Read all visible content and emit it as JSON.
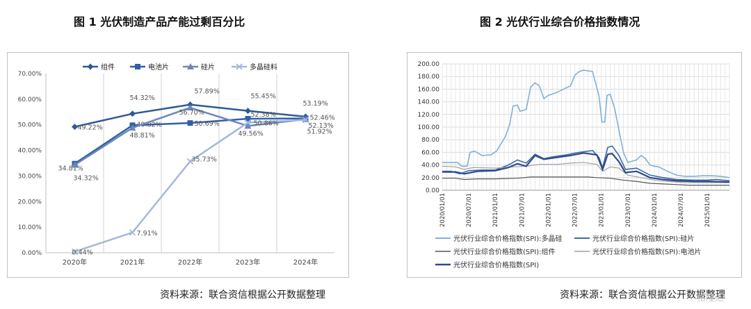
{
  "figure1": {
    "title": "图 1 光伏制造产品产能过剩百分比",
    "source": "资料来源：联合资信根据公开数据整理"
  },
  "figure2": {
    "title": "图 2  光伏行业综合价格指数情况",
    "source": "资料来源：联合资信根据公开数据整理"
  },
  "chart_data": [
    {
      "type": "line",
      "title": "图 1 光伏制造产品产能过剩百分比",
      "categories": [
        "2020年",
        "2021年",
        "2022年",
        "2023年",
        "2024年"
      ],
      "ylim": [
        0,
        70
      ],
      "yticks": [
        "0.00%",
        "10.00%",
        "20.00%",
        "30.00%",
        "40.00%",
        "50.00%",
        "60.00%",
        "70.00%"
      ],
      "grid": "vertical",
      "legend_position": "top",
      "series": [
        {
          "name": "组件",
          "values": [
            49.22,
            54.32,
            57.89,
            55.45,
            53.19
          ],
          "labels": [
            "49.22%",
            "54.32%",
            "57.89%",
            "55.45%",
            "53.19%"
          ],
          "color": "#2e5a93",
          "marker": "diamond"
        },
        {
          "name": "电池片",
          "values": [
            34.81,
            49.82,
            50.69,
            52.38,
            52.46
          ],
          "labels": [
            "34.81%",
            "49.82%",
            "50.69%",
            "52.38%",
            "52.46%"
          ],
          "color": "#2f5fa8",
          "marker": "square"
        },
        {
          "name": "硅片",
          "values": [
            34.32,
            48.81,
            56.7,
            49.56,
            52.13
          ],
          "labels": [
            "34.32%",
            "48.81%",
            "56.70%",
            "49.56%",
            "52.13%"
          ],
          "color": "#6d86bc",
          "marker": "triangle"
        },
        {
          "name": "多晶硅料",
          "values": [
            0.44,
            7.91,
            35.73,
            50.86,
            51.92
          ],
          "labels": [
            "0.44%",
            "7.91%",
            "35.73%",
            "50.86%",
            "51.92%"
          ],
          "color": "#a6b7d9",
          "marker": "x"
        }
      ]
    },
    {
      "type": "line",
      "title": "图 2  光伏行业综合价格指数情况",
      "x_ticks": [
        "2020/01/01",
        "2020/07/01",
        "2021/01/01",
        "2021/07/01",
        "2022/01/01",
        "2022/07/01",
        "2023/01/01",
        "2023/07/01",
        "2024/01/01",
        "2024/07/01",
        "2025/01/01"
      ],
      "xlim": [
        "2020/01/01",
        "2025/06/01"
      ],
      "ylim": [
        0,
        200
      ],
      "yticks": [
        "0.00",
        "20.00",
        "40.00",
        "60.00",
        "80.00",
        "100.00",
        "120.00",
        "140.00",
        "160.00",
        "180.00",
        "200.00"
      ],
      "grid": "both",
      "legend_position": "bottom",
      "series": [
        {
          "name": "光伏行业综合价格指数(SPI):多晶硅",
          "color": "#7fb0d8",
          "points": [
            [
              "2020/01/01",
              44
            ],
            [
              "2020/04/15",
              44
            ],
            [
              "2020/05/15",
              38
            ],
            [
              "2020/06/20",
              38
            ],
            [
              "2020/07/10",
              60
            ],
            [
              "2020/08/10",
              62
            ],
            [
              "2020/10/01",
              55
            ],
            [
              "2020/12/01",
              56
            ],
            [
              "2021/01/10",
              62
            ],
            [
              "2021/03/10",
              85
            ],
            [
              "2021/04/10",
              105
            ],
            [
              "2021/05/01",
              133
            ],
            [
              "2021/06/01",
              135
            ],
            [
              "2021/06/20",
              125
            ],
            [
              "2021/08/01",
              128
            ],
            [
              "2021/09/01",
              163
            ],
            [
              "2021/10/01",
              170
            ],
            [
              "2021/11/01",
              165
            ],
            [
              "2021/12/01",
              145
            ],
            [
              "2022/01/01",
              150
            ],
            [
              "2022/03/01",
              155
            ],
            [
              "2022/05/01",
              162
            ],
            [
              "2022/06/01",
              165
            ],
            [
              "2022/07/01",
              182
            ],
            [
              "2022/08/01",
              188
            ],
            [
              "2022/09/01",
              190
            ],
            [
              "2022/11/01",
              188
            ],
            [
              "2022/12/15",
              150
            ],
            [
              "2023/01/05",
              108
            ],
            [
              "2023/01/25",
              108
            ],
            [
              "2023/02/10",
              150
            ],
            [
              "2023/03/01",
              152
            ],
            [
              "2023/04/01",
              130
            ],
            [
              "2023/05/01",
              95
            ],
            [
              "2023/06/01",
              60
            ],
            [
              "2023/07/01",
              44
            ],
            [
              "2023/09/01",
              48
            ],
            [
              "2023/10/01",
              55
            ],
            [
              "2023/11/01",
              50
            ],
            [
              "2023/12/01",
              40
            ],
            [
              "2024/01/01",
              38
            ],
            [
              "2024/02/01",
              37
            ],
            [
              "2024/04/01",
              30
            ],
            [
              "2024/06/01",
              24
            ],
            [
              "2024/08/01",
              22
            ],
            [
              "2024/10/01",
              22
            ],
            [
              "2024/12/01",
              23
            ],
            [
              "2025/02/01",
              23
            ],
            [
              "2025/04/01",
              22
            ],
            [
              "2025/06/01",
              20
            ]
          ]
        },
        {
          "name": "光伏行业综合价格指数(SPI):硅片",
          "color": "#3a6aa5",
          "points": [
            [
              "2020/01/01",
              30
            ],
            [
              "2020/03/01",
              30
            ],
            [
              "2020/05/01",
              26
            ],
            [
              "2020/07/01",
              31
            ],
            [
              "2020/10/01",
              32
            ],
            [
              "2021/01/01",
              32
            ],
            [
              "2021/04/01",
              40
            ],
            [
              "2021/06/01",
              48
            ],
            [
              "2021/08/01",
              43
            ],
            [
              "2021/10/01",
              57
            ],
            [
              "2021/12/01",
              50
            ],
            [
              "2022/02/01",
              53
            ],
            [
              "2022/05/01",
              56
            ],
            [
              "2022/08/01",
              60
            ],
            [
              "2022/11/01",
              63
            ],
            [
              "2022/12/15",
              52
            ],
            [
              "2023/01/10",
              36
            ],
            [
              "2023/02/15",
              68
            ],
            [
              "2023/03/15",
              70
            ],
            [
              "2023/05/01",
              55
            ],
            [
              "2023/06/15",
              33
            ],
            [
              "2023/09/01",
              35
            ],
            [
              "2023/12/01",
              24
            ],
            [
              "2024/03/01",
              20
            ],
            [
              "2024/06/01",
              17
            ],
            [
              "2024/10/01",
              16
            ],
            [
              "2025/01/01",
              16
            ],
            [
              "2025/03/01",
              17
            ],
            [
              "2025/06/01",
              15
            ]
          ]
        },
        {
          "name": "光伏行业综合价格指数(SPI):组件",
          "color": "#555555",
          "points": [
            [
              "2020/01/01",
              19
            ],
            [
              "2020/04/01",
              19
            ],
            [
              "2020/06/01",
              17
            ],
            [
              "2020/09/01",
              18
            ],
            [
              "2021/01/01",
              18
            ],
            [
              "2021/06/01",
              19
            ],
            [
              "2021/09/01",
              21
            ],
            [
              "2021/12/01",
              21
            ],
            [
              "2022/06/01",
              21
            ],
            [
              "2022/10/01",
              21
            ],
            [
              "2022/12/01",
              20
            ],
            [
              "2023/03/01",
              19
            ],
            [
              "2023/06/01",
              16
            ],
            [
              "2023/09/01",
              14
            ],
            [
              "2023/12/01",
              11
            ],
            [
              "2024/03/01",
              10
            ],
            [
              "2024/06/01",
              9
            ],
            [
              "2024/09/01",
              8
            ],
            [
              "2025/01/01",
              8
            ],
            [
              "2025/06/01",
              8
            ]
          ]
        },
        {
          "name": "光伏行业综合价格指数(SPI):电池片",
          "color": "#a0a0a0",
          "points": [
            [
              "2020/01/01",
              38
            ],
            [
              "2020/04/01",
              37
            ],
            [
              "2020/06/01",
              33
            ],
            [
              "2020/08/01",
              36
            ],
            [
              "2021/01/01",
              35
            ],
            [
              "2021/05/01",
              37
            ],
            [
              "2021/08/01",
              38
            ],
            [
              "2021/11/01",
              41
            ],
            [
              "2022/03/01",
              41
            ],
            [
              "2022/06/01",
              43
            ],
            [
              "2022/09/01",
              44
            ],
            [
              "2022/12/01",
              41
            ],
            [
              "2023/01/10",
              30
            ],
            [
              "2023/03/01",
              37
            ],
            [
              "2023/05/01",
              35
            ],
            [
              "2023/07/01",
              24
            ],
            [
              "2023/10/01",
              20
            ],
            [
              "2024/01/01",
              16
            ],
            [
              "2024/04/01",
              14
            ],
            [
              "2024/08/01",
              12
            ],
            [
              "2024/12/01",
              12
            ],
            [
              "2025/06/01",
              12
            ]
          ]
        },
        {
          "name": "光伏行业综合价格指数(SPI)",
          "color": "#2e4a8a",
          "points": [
            [
              "2020/01/01",
              29
            ],
            [
              "2020/04/01",
              29
            ],
            [
              "2020/06/01",
              26
            ],
            [
              "2020/09/01",
              30
            ],
            [
              "2021/01/01",
              31
            ],
            [
              "2021/04/01",
              36
            ],
            [
              "2021/06/01",
              42
            ],
            [
              "2021/08/01",
              38
            ],
            [
              "2021/10/01",
              55
            ],
            [
              "2021/12/01",
              49
            ],
            [
              "2022/03/01",
              52
            ],
            [
              "2022/06/01",
              55
            ],
            [
              "2022/09/01",
              59
            ],
            [
              "2022/12/01",
              56
            ],
            [
              "2023/01/10",
              33
            ],
            [
              "2023/02/15",
              57
            ],
            [
              "2023/03/15",
              58
            ],
            [
              "2023/05/01",
              45
            ],
            [
              "2023/06/15",
              28
            ],
            [
              "2023/09/01",
              30
            ],
            [
              "2023/12/01",
              20
            ],
            [
              "2024/03/01",
              17
            ],
            [
              "2024/06/01",
              15
            ],
            [
              "2024/10/01",
              14
            ],
            [
              "2025/01/01",
              14
            ],
            [
              "2025/06/01",
              13
            ]
          ]
        }
      ]
    }
  ],
  "watermark": "格隆汇"
}
